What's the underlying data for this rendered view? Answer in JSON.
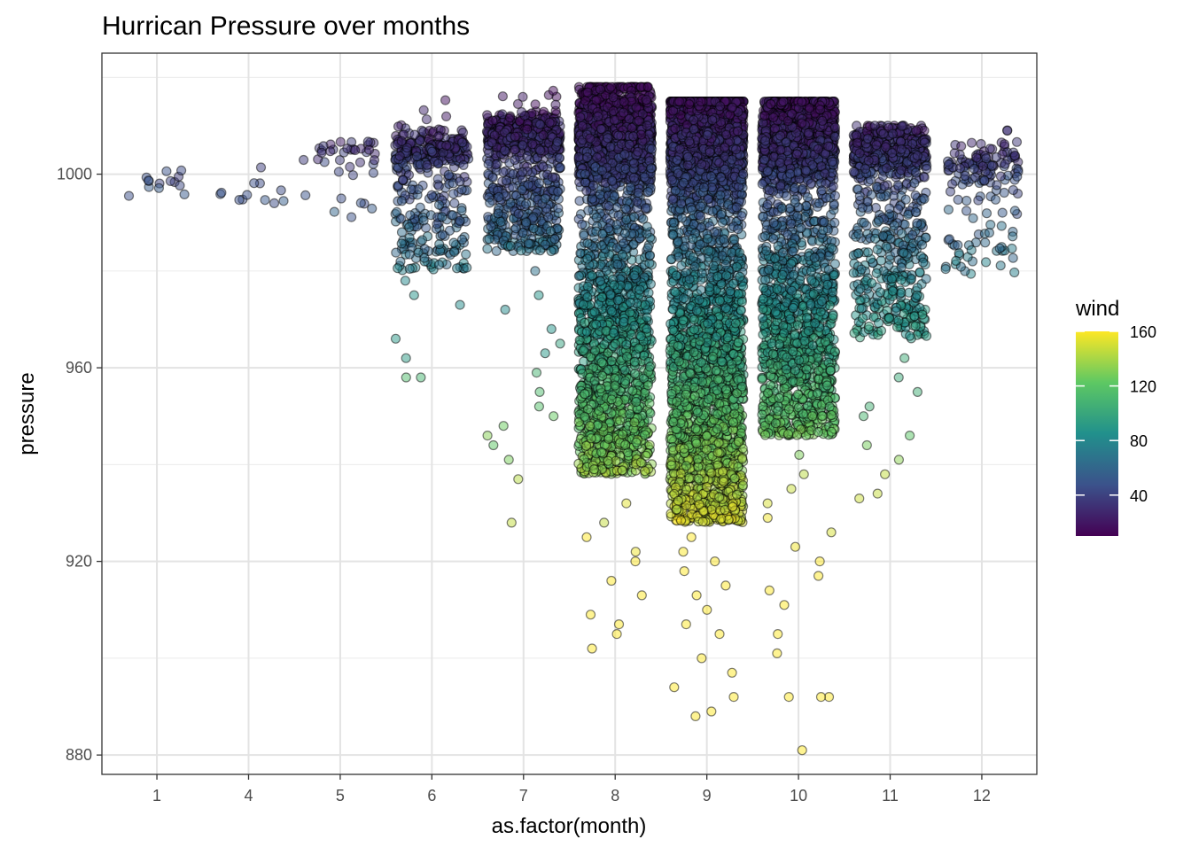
{
  "chart_data": {
    "type": "scatter",
    "title": "Hurrican Pressure over months",
    "xlabel": "as.factor(month)",
    "ylabel": "pressure",
    "categories": [
      "1",
      "4",
      "5",
      "6",
      "7",
      "8",
      "9",
      "10",
      "11",
      "12"
    ],
    "y_ticks": [
      880,
      920,
      960,
      1000
    ],
    "ylim": [
      876,
      1025
    ],
    "jitter_width": 0.4,
    "grid": true,
    "legend": {
      "title": "wind",
      "ticks": [
        40,
        80,
        120,
        160
      ],
      "range": [
        10,
        160
      ],
      "colors": [
        "#440154",
        "#3b528b",
        "#21908c",
        "#5dc863",
        "#fde725"
      ],
      "position": "right"
    },
    "point_style": {
      "opacity": 0.5,
      "stroke": "#000000"
    },
    "series": [
      {
        "category": "1",
        "n": 14,
        "pmin": 993,
        "pmax": 1008,
        "mode": 997,
        "spread": 6,
        "low_tail": []
      },
      {
        "category": "4",
        "n": 12,
        "pmin": 994,
        "pmax": 1003,
        "mode": 995,
        "spread": 4,
        "low_tail": []
      },
      {
        "category": "5",
        "n": 40,
        "pmin": 991,
        "pmax": 1012,
        "mode": 1005,
        "spread": 5,
        "low_tail": []
      },
      {
        "category": "6",
        "n": 420,
        "pmin": 980,
        "pmax": 1016,
        "mode": 1005,
        "spread": 6,
        "low_tail": [
          973,
          975,
          966,
          962,
          958,
          958,
          978
        ]
      },
      {
        "category": "7",
        "n": 900,
        "pmin": 984,
        "pmax": 1019,
        "mode": 1008,
        "spread": 6,
        "low_tail": [
          980,
          975,
          972,
          968,
          965,
          963,
          959,
          955,
          952,
          950,
          948,
          946,
          944,
          941,
          937,
          928
        ]
      },
      {
        "category": "8",
        "n": 3200,
        "pmin": 938,
        "pmax": 1018,
        "mode": 1008,
        "spread": 16,
        "low_tail": [
          932,
          928,
          925,
          922,
          920,
          916,
          913,
          909,
          907,
          905,
          902
        ]
      },
      {
        "category": "9",
        "n": 4200,
        "pmin": 928,
        "pmax": 1015,
        "mode": 1008,
        "spread": 20,
        "low_tail": [
          925,
          922,
          920,
          918,
          915,
          913,
          910,
          907,
          905,
          900,
          897,
          894,
          892,
          889,
          888
        ]
      },
      {
        "category": "10",
        "n": 2600,
        "pmin": 946,
        "pmax": 1015,
        "mode": 1008,
        "spread": 15,
        "low_tail": [
          942,
          938,
          935,
          932,
          929,
          926,
          923,
          920,
          917,
          914,
          911,
          905,
          901,
          892,
          892,
          892,
          881
        ]
      },
      {
        "category": "11",
        "n": 800,
        "pmin": 966,
        "pmax": 1010,
        "mode": 1005,
        "spread": 9,
        "low_tail": [
          962,
          958,
          955,
          952,
          950,
          946,
          944,
          941,
          938,
          934,
          933
        ]
      },
      {
        "category": "12",
        "n": 160,
        "pmin": 978,
        "pmax": 1013,
        "mode": 1002,
        "spread": 8,
        "low_tail": []
      }
    ]
  }
}
